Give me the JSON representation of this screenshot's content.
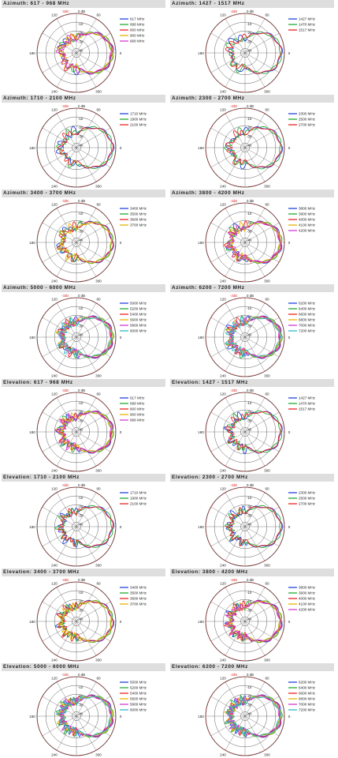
{
  "axis": {
    "ring_labels": [
      "0 dB",
      "-10",
      "-20",
      "-30",
      "-40"
    ],
    "angle_labels": [
      "0",
      "60",
      "120",
      "180",
      "240",
      "300"
    ],
    "radial_ticks_db": [
      0,
      -10,
      -20,
      -30,
      -40
    ],
    "rmin_db": -45,
    "reference_circle_db": -3,
    "reference_label": "-3dB"
  },
  "colors": {
    "reference": "#e03030",
    "grid": "#333333",
    "palette": [
      "#2244dd",
      "#22aa33",
      "#ee2222",
      "#e6b400",
      "#d43bd4",
      "#30b8c8"
    ]
  },
  "chart_data": [
    {
      "type": "polar",
      "plane": "azimuth",
      "title": "Azimuth:  617 - 968 MHz",
      "legend": "right",
      "grid": true,
      "series": [
        {
          "name": "617 MHz",
          "color": "#2244dd"
        },
        {
          "name": "698 MHz",
          "color": "#22aa33"
        },
        {
          "name": "800 MHz",
          "color": "#ee2222"
        },
        {
          "name": "900 MHz",
          "color": "#e6b400"
        },
        {
          "name": "968 MHz",
          "color": "#d43bd4"
        }
      ]
    },
    {
      "type": "polar",
      "plane": "azimuth",
      "title": "Azimuth:  1427 - 1517 MHz",
      "legend": "right",
      "grid": true,
      "series": [
        {
          "name": "1427 MHz",
          "color": "#2244dd"
        },
        {
          "name": "1470 MHz",
          "color": "#22aa33"
        },
        {
          "name": "1517 MHz",
          "color": "#ee2222"
        }
      ]
    },
    {
      "type": "polar",
      "plane": "azimuth",
      "title": "Azimuth:  1710 - 2100 MHz",
      "legend": "right",
      "grid": true,
      "series": [
        {
          "name": "1710 MHz",
          "color": "#2244dd"
        },
        {
          "name": "1900 MHz",
          "color": "#22aa33"
        },
        {
          "name": "2100 MHz",
          "color": "#ee2222"
        }
      ]
    },
    {
      "type": "polar",
      "plane": "azimuth",
      "title": "Azimuth:  2300 - 2700 MHz",
      "legend": "right",
      "grid": true,
      "series": [
        {
          "name": "2300 MHz",
          "color": "#2244dd"
        },
        {
          "name": "2500 MHz",
          "color": "#22aa33"
        },
        {
          "name": "2700 MHz",
          "color": "#ee2222"
        }
      ]
    },
    {
      "type": "polar",
      "plane": "azimuth",
      "title": "Azimuth:  3400 - 3700 MHz",
      "legend": "right",
      "grid": true,
      "series": [
        {
          "name": "3400 MHz",
          "color": "#2244dd"
        },
        {
          "name": "3500 MHz",
          "color": "#22aa33"
        },
        {
          "name": "3600 MHz",
          "color": "#ee2222"
        },
        {
          "name": "3700 MHz",
          "color": "#e6b400"
        }
      ]
    },
    {
      "type": "polar",
      "plane": "azimuth",
      "title": "Azimuth:  3800 - 4200 MHz",
      "legend": "right",
      "grid": true,
      "series": [
        {
          "name": "3800 MHz",
          "color": "#2244dd"
        },
        {
          "name": "3900 MHz",
          "color": "#22aa33"
        },
        {
          "name": "4000 MHz",
          "color": "#ee2222"
        },
        {
          "name": "4100 MHz",
          "color": "#e6b400"
        },
        {
          "name": "4200 MHz",
          "color": "#d43bd4"
        }
      ]
    },
    {
      "type": "polar",
      "plane": "azimuth",
      "title": "Azimuth:  5000 - 6000 MHz",
      "legend": "right",
      "grid": true,
      "series": [
        {
          "name": "5000 MHz",
          "color": "#2244dd"
        },
        {
          "name": "5200 MHz",
          "color": "#22aa33"
        },
        {
          "name": "5400 MHz",
          "color": "#ee2222"
        },
        {
          "name": "5600 MHz",
          "color": "#e6b400"
        },
        {
          "name": "5800 MHz",
          "color": "#d43bd4"
        },
        {
          "name": "6000 MHz",
          "color": "#30b8c8"
        }
      ]
    },
    {
      "type": "polar",
      "plane": "azimuth",
      "title": "Azimuth:  6200 - 7200 MHz",
      "legend": "right",
      "grid": true,
      "series": [
        {
          "name": "6200 MHz",
          "color": "#2244dd"
        },
        {
          "name": "6400 MHz",
          "color": "#22aa33"
        },
        {
          "name": "6600 MHz",
          "color": "#ee2222"
        },
        {
          "name": "6800 MHz",
          "color": "#e6b400"
        },
        {
          "name": "7000 MHz",
          "color": "#d43bd4"
        },
        {
          "name": "7200 MHz",
          "color": "#30b8c8"
        }
      ]
    },
    {
      "type": "polar",
      "plane": "elevation",
      "title": "Elevation:  617 - 968 MHz",
      "legend": "right",
      "grid": true,
      "series": [
        {
          "name": "617 MHz",
          "color": "#2244dd"
        },
        {
          "name": "698 MHz",
          "color": "#22aa33"
        },
        {
          "name": "800 MHz",
          "color": "#ee2222"
        },
        {
          "name": "900 MHz",
          "color": "#e6b400"
        },
        {
          "name": "968 MHz",
          "color": "#d43bd4"
        }
      ]
    },
    {
      "type": "polar",
      "plane": "elevation",
      "title": "Elevation:  1427 - 1517 MHz",
      "legend": "right",
      "grid": true,
      "series": [
        {
          "name": "1427 MHz",
          "color": "#2244dd"
        },
        {
          "name": "1470 MHz",
          "color": "#22aa33"
        },
        {
          "name": "1517 MHz",
          "color": "#ee2222"
        }
      ]
    },
    {
      "type": "polar",
      "plane": "elevation",
      "title": "Elevation:  1710 - 2100 MHz",
      "legend": "right",
      "grid": true,
      "series": [
        {
          "name": "1710 MHz",
          "color": "#2244dd"
        },
        {
          "name": "1900 MHz",
          "color": "#22aa33"
        },
        {
          "name": "2100 MHz",
          "color": "#ee2222"
        }
      ]
    },
    {
      "type": "polar",
      "plane": "elevation",
      "title": "Elevation:  2300 - 2700 MHz",
      "legend": "right",
      "grid": true,
      "series": [
        {
          "name": "2300 MHz",
          "color": "#2244dd"
        },
        {
          "name": "2500 MHz",
          "color": "#22aa33"
        },
        {
          "name": "2700 MHz",
          "color": "#ee2222"
        }
      ]
    },
    {
      "type": "polar",
      "plane": "elevation",
      "title": "Elevation:  3400 - 3700 MHz",
      "legend": "right",
      "grid": true,
      "series": [
        {
          "name": "3400 MHz",
          "color": "#2244dd"
        },
        {
          "name": "3500 MHz",
          "color": "#22aa33"
        },
        {
          "name": "3600 MHz",
          "color": "#ee2222"
        },
        {
          "name": "3700 MHz",
          "color": "#e6b400"
        }
      ]
    },
    {
      "type": "polar",
      "plane": "elevation",
      "title": "Elevation:  3800 - 4200 MHz",
      "legend": "right",
      "grid": true,
      "series": [
        {
          "name": "3800 MHz",
          "color": "#2244dd"
        },
        {
          "name": "3900 MHz",
          "color": "#22aa33"
        },
        {
          "name": "4000 MHz",
          "color": "#ee2222"
        },
        {
          "name": "4100 MHz",
          "color": "#e6b400"
        },
        {
          "name": "4200 MHz",
          "color": "#d43bd4"
        }
      ]
    },
    {
      "type": "polar",
      "plane": "elevation",
      "title": "Elevation:  5000 - 6000 MHz",
      "legend": "right",
      "grid": true,
      "series": [
        {
          "name": "5000 MHz",
          "color": "#2244dd"
        },
        {
          "name": "5200 MHz",
          "color": "#22aa33"
        },
        {
          "name": "5400 MHz",
          "color": "#ee2222"
        },
        {
          "name": "5600 MHz",
          "color": "#e6b400"
        },
        {
          "name": "5800 MHz",
          "color": "#d43bd4"
        },
        {
          "name": "6000 MHz",
          "color": "#30b8c8"
        }
      ]
    },
    {
      "type": "polar",
      "plane": "elevation",
      "title": "Elevation:  6200 - 7200 MHz",
      "legend": "right",
      "grid": true,
      "series": [
        {
          "name": "6200 MHz",
          "color": "#2244dd"
        },
        {
          "name": "6400 MHz",
          "color": "#22aa33"
        },
        {
          "name": "6600 MHz",
          "color": "#ee2222"
        },
        {
          "name": "6800 MHz",
          "color": "#e6b400"
        },
        {
          "name": "7000 MHz",
          "color": "#d43bd4"
        },
        {
          "name": "7200 MHz",
          "color": "#30b8c8"
        }
      ]
    }
  ]
}
